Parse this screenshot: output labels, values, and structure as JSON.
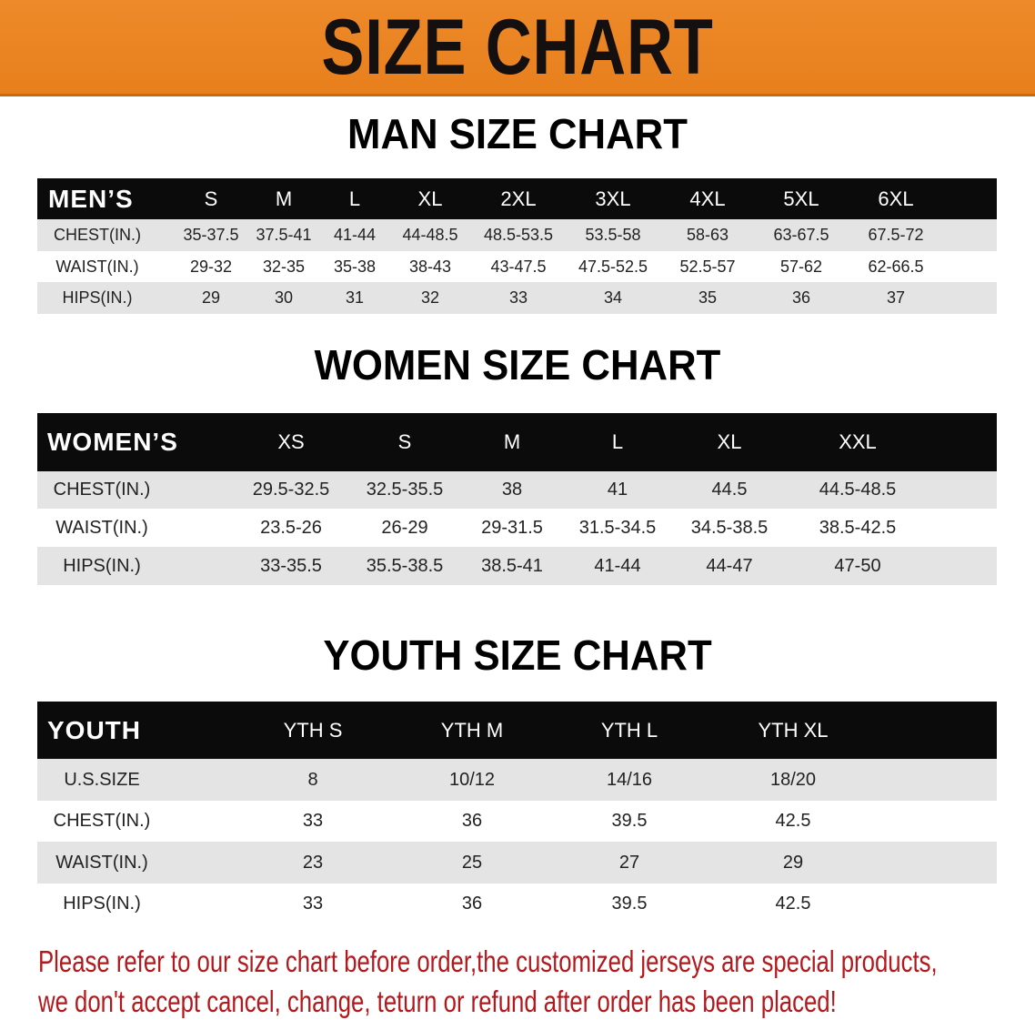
{
  "banner": {
    "title": "SIZE CHART",
    "color": "#e98220"
  },
  "men": {
    "title": "MAN SIZE CHART",
    "header": [
      "MEN’S",
      "S",
      "M",
      "L",
      "XL",
      "2XL",
      "3XL",
      "4XL",
      "5XL",
      "6XL"
    ],
    "rows": [
      [
        "CHEST(IN.)",
        "35-37.5",
        "37.5-41",
        "41-44",
        "44-48.5",
        "48.5-53.5",
        "53.5-58",
        "58-63",
        "63-67.5",
        "67.5-72"
      ],
      [
        "WAIST(IN.)",
        "29-32",
        "32-35",
        "35-38",
        "38-43",
        "43-47.5",
        "47.5-52.5",
        "52.5-57",
        "57-62",
        "62-66.5"
      ],
      [
        "HIPS(IN.)",
        "29",
        "30",
        "31",
        "32",
        "33",
        "34",
        "35",
        "36",
        "37"
      ]
    ]
  },
  "women": {
    "title": "WOMEN SIZE CHART",
    "header": [
      "WOMEN’S",
      "XS",
      "S",
      "M",
      "L",
      "XL",
      "XXL"
    ],
    "rows": [
      [
        "CHEST(IN.)",
        "29.5-32.5",
        "32.5-35.5",
        "38",
        "41",
        "44.5",
        "44.5-48.5"
      ],
      [
        "WAIST(IN.)",
        "23.5-26",
        "26-29",
        "29-31.5",
        "31.5-34.5",
        "34.5-38.5",
        "38.5-42.5"
      ],
      [
        "HIPS(IN.)",
        "33-35.5",
        "35.5-38.5",
        "38.5-41",
        "41-44",
        "44-47",
        "47-50"
      ]
    ]
  },
  "youth": {
    "title": "YOUTH SIZE CHART",
    "header": [
      "YOUTH",
      "YTH S",
      "YTH M",
      "YTH L",
      "YTH XL"
    ],
    "rows": [
      [
        "U.S.SIZE",
        "8",
        "10/12",
        "14/16",
        "18/20"
      ],
      [
        "CHEST(IN.)",
        "33",
        "36",
        "39.5",
        "42.5"
      ],
      [
        "WAIST(IN.)",
        "23",
        "25",
        "27",
        "29"
      ],
      [
        "HIPS(IN.)",
        "33",
        "36",
        "39.5",
        "42.5"
      ]
    ]
  },
  "note": {
    "line1": "Please refer to our size chart before order,the customized jerseys are special products,",
    "line2": "we don't accept cancel, change, teturn or refund after order has been placed!",
    "color": "#b3191c"
  }
}
